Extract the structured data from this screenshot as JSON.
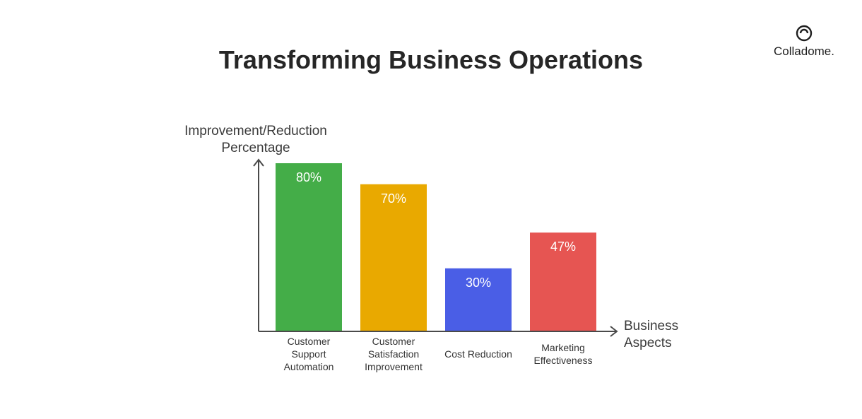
{
  "brand": {
    "name": "Colladome.",
    "icon": "colladome-logo-icon"
  },
  "chart_data": {
    "type": "bar",
    "title": "Transforming Business Operations",
    "ylabel": [
      "Improvement/Reduction",
      "Percentage"
    ],
    "xlabel": [
      "Business",
      "Aspects"
    ],
    "ylim": [
      0,
      85
    ],
    "grid": false,
    "categories": [
      [
        "Customer",
        "Support",
        "Automation"
      ],
      [
        "Customer",
        "Satisfaction",
        "Improvement"
      ],
      [
        "Cost Reduction"
      ],
      [
        "Marketing",
        "Effectiveness"
      ]
    ],
    "values": [
      80,
      70,
      30,
      47
    ],
    "value_labels": [
      "80%",
      "70%",
      "30%",
      "47%"
    ],
    "colors": [
      "#44ad48",
      "#e9a900",
      "#4a5ee6",
      "#e65552"
    ]
  }
}
